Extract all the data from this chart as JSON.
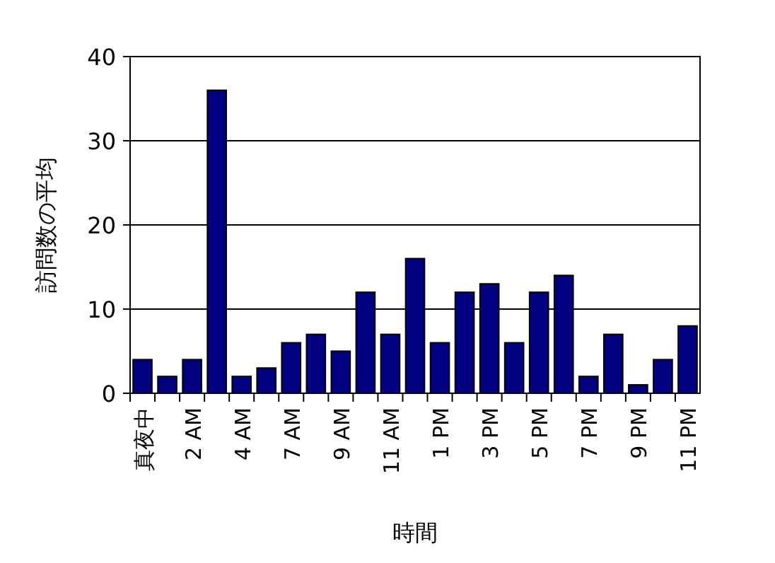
{
  "chart_data": {
    "type": "bar",
    "xlabel": "時間",
    "ylabel": "訪問数の平均",
    "categories": [
      "真夜中",
      null,
      "2 AM",
      null,
      "4 AM",
      null,
      "7 AM",
      null,
      "9 AM",
      null,
      "11 AM",
      null,
      "1 PM",
      null,
      "3 PM",
      null,
      "5 PM",
      null,
      "7 PM",
      null,
      "9 PM",
      null,
      "11 PM"
    ],
    "values": [
      4,
      2,
      4,
      36,
      2,
      3,
      6,
      7,
      5,
      12,
      7,
      16,
      6,
      12,
      13,
      6,
      12,
      14,
      2,
      7,
      1,
      4,
      8
    ],
    "color": "#000080",
    "ylim": [
      0,
      40
    ],
    "yticks": [
      0,
      10,
      20,
      30,
      40
    ],
    "grid": "y"
  }
}
